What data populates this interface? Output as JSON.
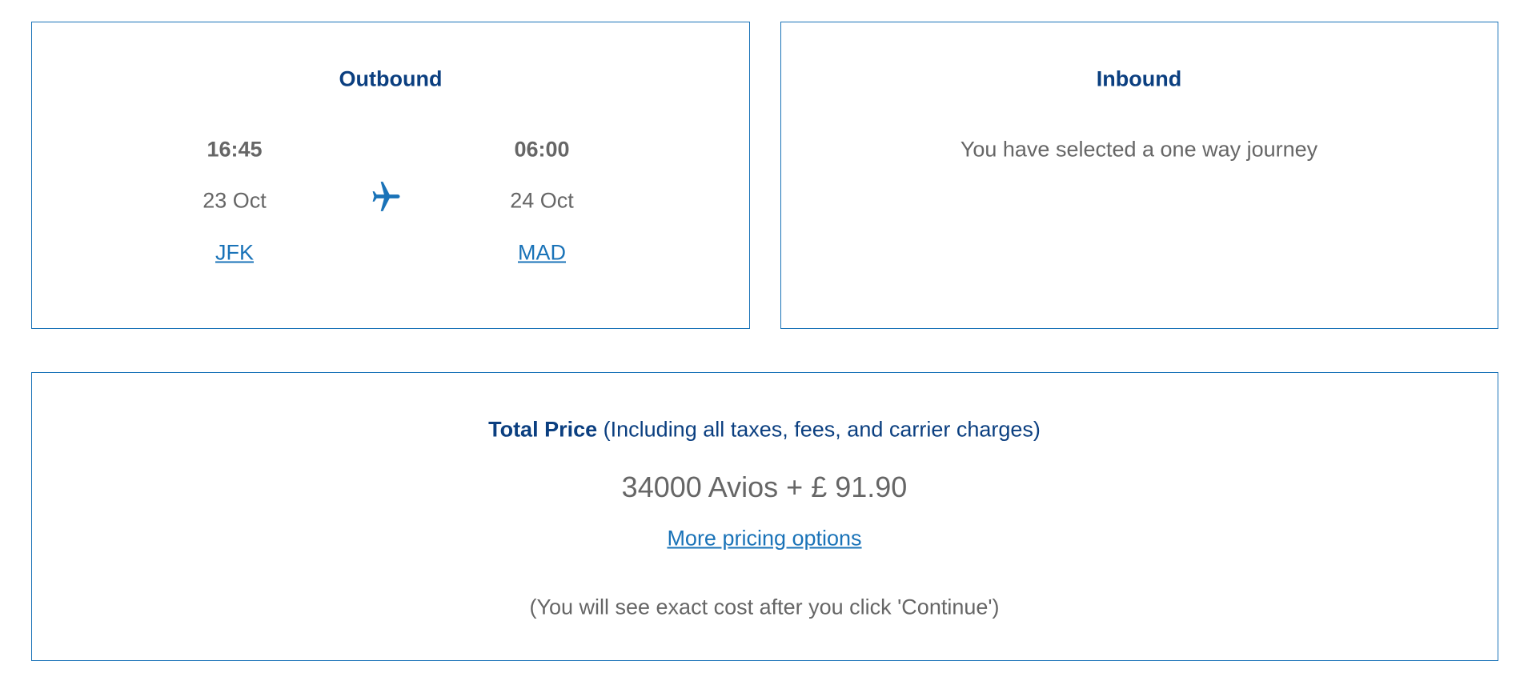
{
  "outbound": {
    "title": "Outbound",
    "departure": {
      "time": "16:45",
      "date": "23 Oct",
      "airport": "JFK"
    },
    "arrival": {
      "time": "06:00",
      "date": "24 Oct",
      "airport": "MAD"
    },
    "icon": "plane-icon"
  },
  "inbound": {
    "title": "Inbound",
    "message": "You have selected a one way journey"
  },
  "price": {
    "label": "Total Price",
    "label_note": "(Including all taxes, fees, and carrier charges)",
    "amount": "34000 Avios + £ 91.90",
    "more_options": "More pricing options",
    "footnote": "(You will see exact cost after you click 'Continue')"
  },
  "colors": {
    "accent": "#1a73b8",
    "heading": "#0b3f80",
    "text": "#666666"
  }
}
